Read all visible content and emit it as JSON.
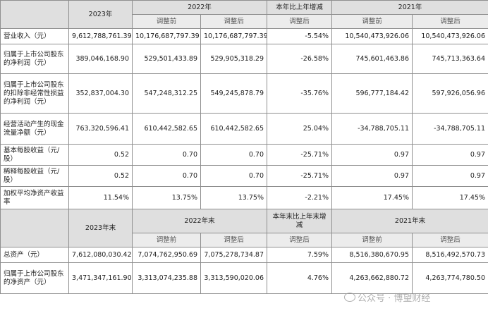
{
  "header": {
    "col_2023": "2023年",
    "col_2022": "2022年",
    "col_change": "本年比上年增减",
    "col_2021": "2021年",
    "before_adj": "调整前",
    "after_adj": "调整后"
  },
  "rows": [
    {
      "label": "营业收入（元）",
      "v2023": "9,612,788,761.39",
      "v2022_before": "10,176,687,797.39",
      "v2022_after": "10,176,687,797.39",
      "change": "-5.54%",
      "v2021_before": "10,540,473,926.06",
      "v2021_after": "10,540,473,926.06"
    },
    {
      "label": "归属于上市公司股东的净利润（元）",
      "v2023": "389,046,168.90",
      "v2022_before": "529,501,433.89",
      "v2022_after": "529,905,318.29",
      "change": "-26.58%",
      "v2021_before": "745,601,463.86",
      "v2021_after": "745,713,363.64"
    },
    {
      "label": "归属于上市公司股东的扣除非经常性损益的净利润（元）",
      "v2023": "352,837,004.30",
      "v2022_before": "547,248,312.25",
      "v2022_after": "549,245,878.79",
      "change": "-35.76%",
      "v2021_before": "596,777,184.42",
      "v2021_after": "597,926,056.96"
    },
    {
      "label": "经营活动产生的现金流量净额（元）",
      "v2023": "763,320,596.41",
      "v2022_before": "610,442,582.65",
      "v2022_after": "610,442,582.65",
      "change": "25.04%",
      "v2021_before": "-34,788,705.11",
      "v2021_after": "-34,788,705.11"
    },
    {
      "label": "基本每股收益（元/股）",
      "v2023": "0.52",
      "v2022_before": "0.70",
      "v2022_after": "0.70",
      "change": "-25.71%",
      "v2021_before": "0.97",
      "v2021_after": "0.97"
    },
    {
      "label": "稀释每股收益（元/股）",
      "v2023": "0.52",
      "v2022_before": "0.70",
      "v2022_after": "0.70",
      "change": "-25.71%",
      "v2021_before": "0.97",
      "v2021_after": "0.97"
    },
    {
      "label": "加权平均净资产收益率",
      "v2023": "11.54%",
      "v2022_before": "13.75%",
      "v2022_after": "13.75%",
      "change": "-2.21%",
      "v2021_before": "17.45%",
      "v2021_after": "17.45%"
    }
  ],
  "header2": {
    "col_2023": "2023年末",
    "col_2022": "2022年末",
    "col_change": "本年末比上年末增减",
    "col_2021": "2021年末",
    "before_adj": "调整前",
    "after_adj": "调整后"
  },
  "rows2": [
    {
      "label": "总资产（元）",
      "v2023": "7,612,080,030.42",
      "v2022_before": "7,074,762,950.69",
      "v2022_after": "7,075,278,734.87",
      "change": "7.59%",
      "v2021_before": "8,516,380,670.95",
      "v2021_after": "8,516,492,570.73"
    },
    {
      "label": "归属于上市公司股东的净资产（元）",
      "v2023": "3,471,347,161.90",
      "v2022_before": "3,313,074,235.88",
      "v2022_after": "3,313,590,020.06",
      "change": "4.76%",
      "v2021_before": "4,263,662,880.72",
      "v2021_after": "4,263,774,780.50"
    }
  ],
  "watermark": "公众号 · 博望财经"
}
